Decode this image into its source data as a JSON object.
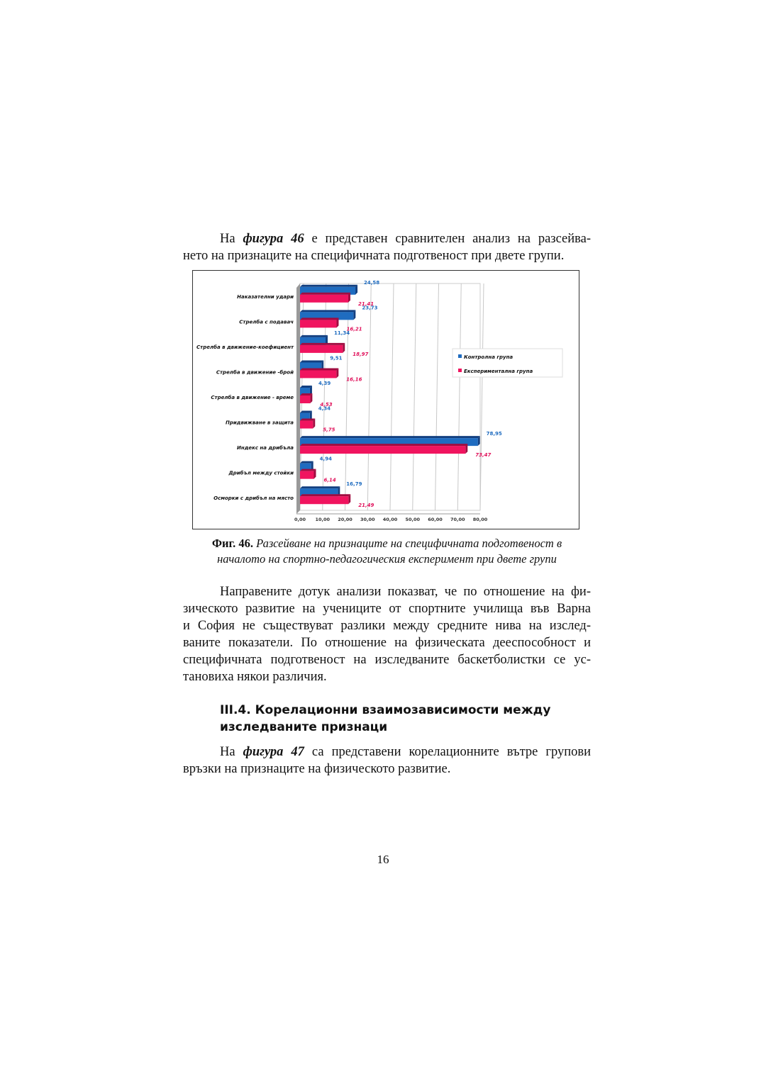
{
  "intro": {
    "lines": [
      [
        "На ",
        "фигура 46",
        " е представен сравнителен анализ на разсейва-"
      ],
      [
        "нето на признаците на специфичната подготвеност при двете групи."
      ]
    ]
  },
  "figure": {
    "caption_label": "Фиг. 46.",
    "caption_line1": "Разсейване на признаците на специфичната подготвеност в",
    "caption_line2": "началото на спортно-педагогическия експеримент при двете групи"
  },
  "chart_data": {
    "type": "bar",
    "orientation": "horizontal",
    "style": "3d",
    "categories": [
      "Наказателни удари",
      "Стрелба  с подавач",
      "Стрелба в движение-коефициент",
      "Стрелба в движение -брой",
      "Стрелба в движение - време",
      "Придвижване в защита",
      "Индекс на дрибъла",
      "Дрибъл между стойки",
      "Осморки с дрибъл на място"
    ],
    "series": [
      {
        "name": "Контролна група",
        "color": "#1f6cc0",
        "values": [
          24.58,
          23.73,
          11.34,
          9.51,
          4.39,
          4.34,
          78.95,
          4.94,
          16.79
        ],
        "labels": [
          "24,58",
          "23,73",
          "11,34",
          "9,51",
          "4,39",
          "4,34",
          "78,95",
          "4,94",
          "16,79"
        ]
      },
      {
        "name": "Експериментална група",
        "color": "#f0145f",
        "values": [
          21.41,
          16.21,
          18.97,
          16.16,
          4.53,
          5.75,
          73.47,
          6.14,
          21.49
        ],
        "labels": [
          "21,41",
          "16,21",
          "18,97",
          "16,16",
          "4,53",
          "5,75",
          "73,47",
          "6,14",
          "21,49"
        ]
      }
    ],
    "xlim": [
      0,
      80
    ],
    "xticks": [
      "0,00",
      "10,00",
      "20,00",
      "30,00",
      "40,00",
      "50,00",
      "60,00",
      "70,00",
      "80,00"
    ],
    "grid": true,
    "legend": "right"
  },
  "body": {
    "para1": [
      "Направените дотук анализи показват, че по отношение на фи-",
      "зическото развитие на учениците от спортните училища във Варна",
      "и София не съществуват разлики между средните нива на изслед-",
      "ваните показатели. По отношение на физическата дееспособност и",
      "специфичната подготвеност на изследваните баскетболистки се ус-",
      "тановиха някои различия."
    ],
    "heading_line1": "III.4. Корелационни взаимозависимости между",
    "heading_line2": "изследваните признаци",
    "para2_prefix": "На ",
    "para2_fig": "фигура 47",
    "para2_rest": " са представени корелационните вътре групови",
    "para2_line2": "връзки на признаците на физическото развитие."
  },
  "page_number": "16"
}
